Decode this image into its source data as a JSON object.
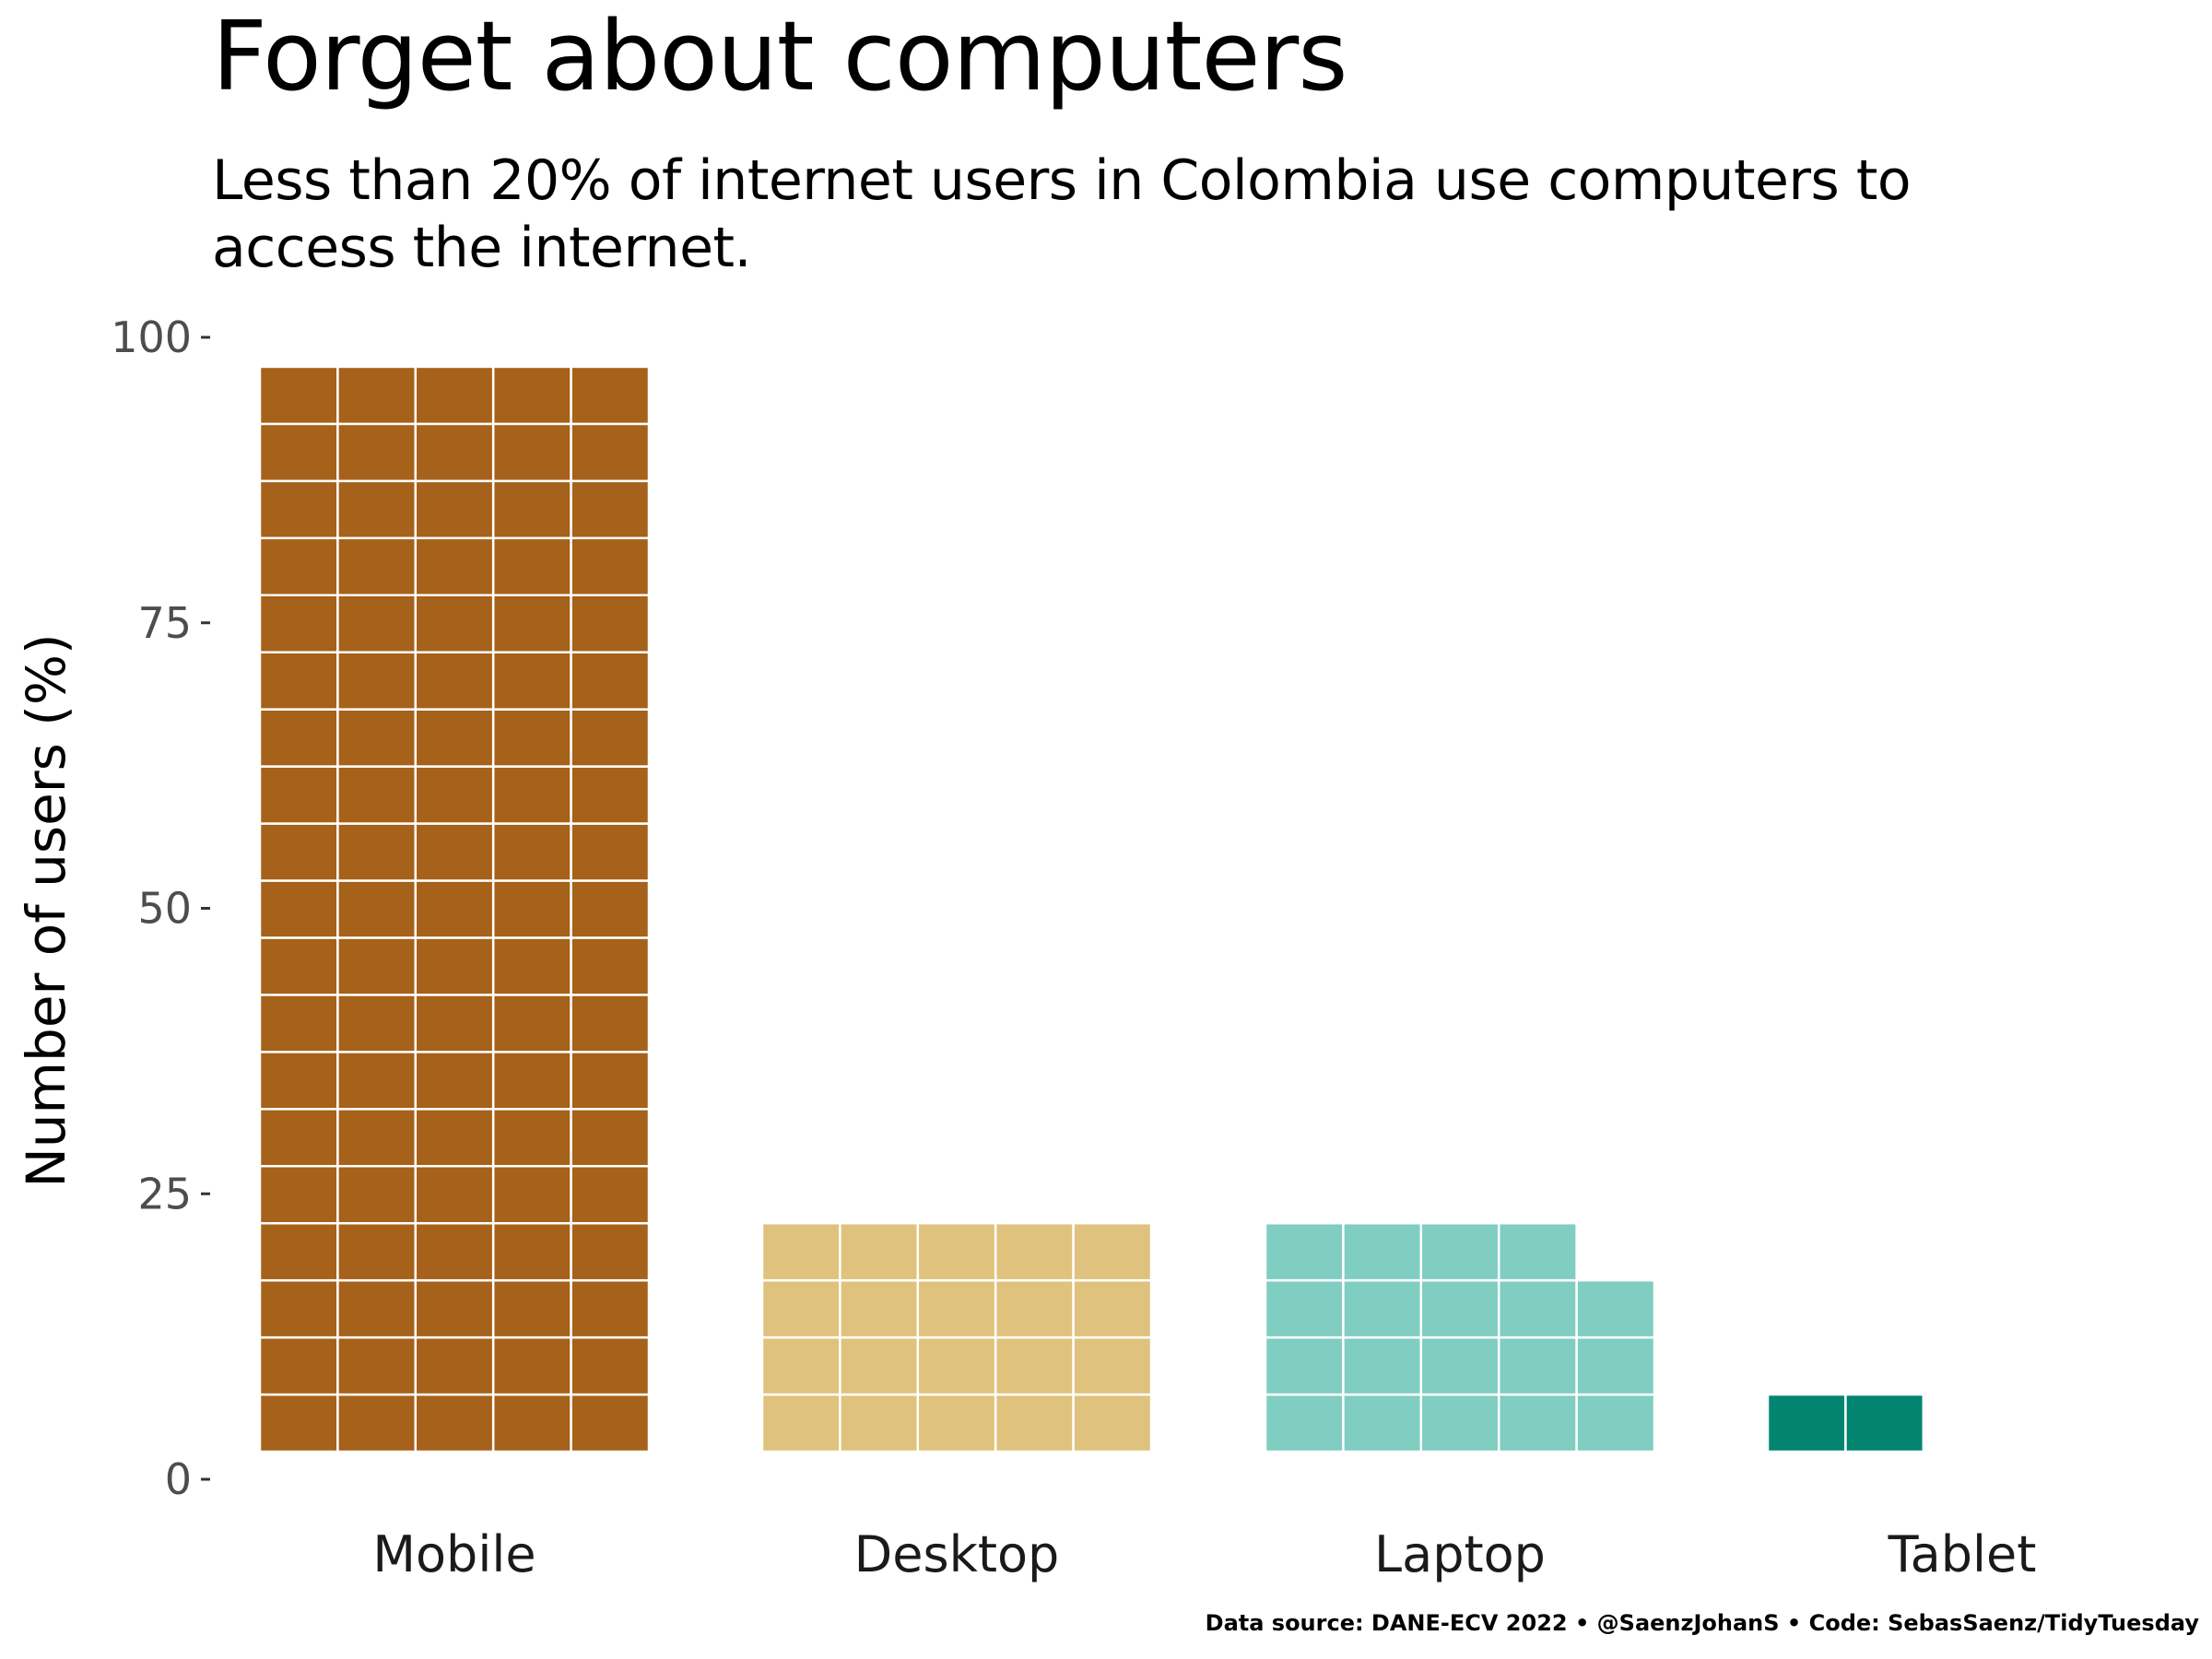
{
  "title": "Forget about computers",
  "subtitle": "Less than 20% of internet users in Colombia use computers to access the internet.",
  "caption": "Data source: DANE-ECV 2022 • @SaenzJohanS • Code: SebasSaenz/TidyTuesday",
  "chart_data": {
    "type": "bar",
    "style": "waffle",
    "categories": [
      "Mobile",
      "Desktop",
      "Laptop",
      "Tablet"
    ],
    "values": [
      95,
      20,
      19,
      2
    ],
    "colors": [
      "#A6611A",
      "#DFC27D",
      "#80CDC1",
      "#018571"
    ],
    "units_per_row": 5,
    "unit_value": 1,
    "xlabel": "",
    "ylabel": "Number of users (%)",
    "yticks": [
      0,
      25,
      50,
      75,
      100
    ],
    "ylim": [
      0,
      100
    ],
    "grid": false,
    "legend": "none"
  }
}
